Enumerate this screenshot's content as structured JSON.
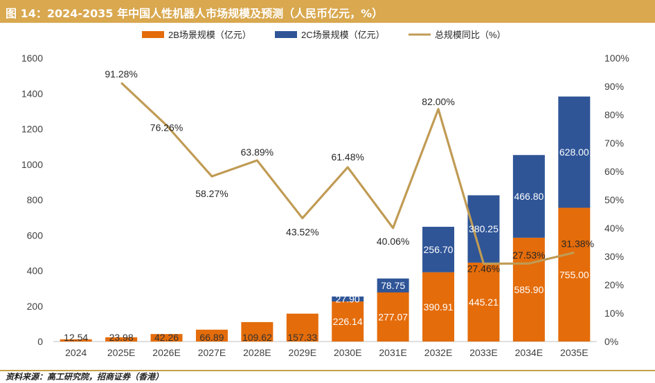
{
  "title": "图 14：2024-2035 年中国人性机器人市场规模及预测（人民币亿元，%）",
  "source": "资料来源：高工研究院，招商证券（香港）",
  "colors": {
    "title_bg": "#d9a84f",
    "b2b": "#e46c0a",
    "b2c": "#2f5597",
    "growth": "#c09b54"
  },
  "chart_data": {
    "type": "bar",
    "stacked": true,
    "categories": [
      "2024",
      "2025E",
      "2026E",
      "2027E",
      "2028E",
      "2029E",
      "2030E",
      "2031E",
      "2032E",
      "2033E",
      "2034E",
      "2035E"
    ],
    "series": [
      {
        "name": "2B场景规模（亿元）",
        "type": "bar",
        "axis": "left",
        "color": "#e46c0a",
        "values": [
          12.54,
          23.98,
          42.26,
          66.89,
          109.62,
          157.33,
          226.14,
          277.07,
          390.91,
          445.21,
          585.9,
          755.0
        ],
        "labels": [
          "12.54",
          "23.98",
          "42.26",
          "66.89",
          "109.62",
          "157.33",
          "226.14",
          "277.07",
          "390.91",
          "445.21",
          "585.90",
          "755.00"
        ]
      },
      {
        "name": "2C场景规模（亿元）",
        "type": "bar",
        "axis": "left",
        "color": "#2f5597",
        "values": [
          null,
          null,
          null,
          null,
          null,
          null,
          27.9,
          78.75,
          256.7,
          380.25,
          466.8,
          628.0
        ],
        "labels": [
          "",
          "",
          "",
          "",
          "",
          "",
          "27.90",
          "78.75",
          "256.70",
          "380.25",
          "466.80",
          "628.00"
        ]
      },
      {
        "name": "总规模同比（%）",
        "type": "line",
        "axis": "right",
        "color": "#c09b54",
        "values": [
          null,
          91.28,
          76.26,
          58.27,
          63.89,
          43.52,
          61.48,
          40.06,
          82.0,
          27.46,
          27.53,
          31.38
        ],
        "labels": [
          "",
          "91.28%",
          "76.26%",
          "58.27%",
          "63.89%",
          "43.52%",
          "61.48%",
          "40.06%",
          "82.00%",
          "27.46%",
          "27.53%",
          "31.38%"
        ]
      }
    ],
    "y_left": {
      "min": 0,
      "max": 1600,
      "ticks": [
        "0",
        "200",
        "400",
        "600",
        "800",
        "1000",
        "1200",
        "1400",
        "1600"
      ]
    },
    "y_right": {
      "min": 0,
      "max": 100,
      "ticks": [
        "0%",
        "10%",
        "20%",
        "30%",
        "40%",
        "50%",
        "60%",
        "70%",
        "80%",
        "90%",
        "100%"
      ]
    },
    "legend": "top-center",
    "grid": false
  }
}
